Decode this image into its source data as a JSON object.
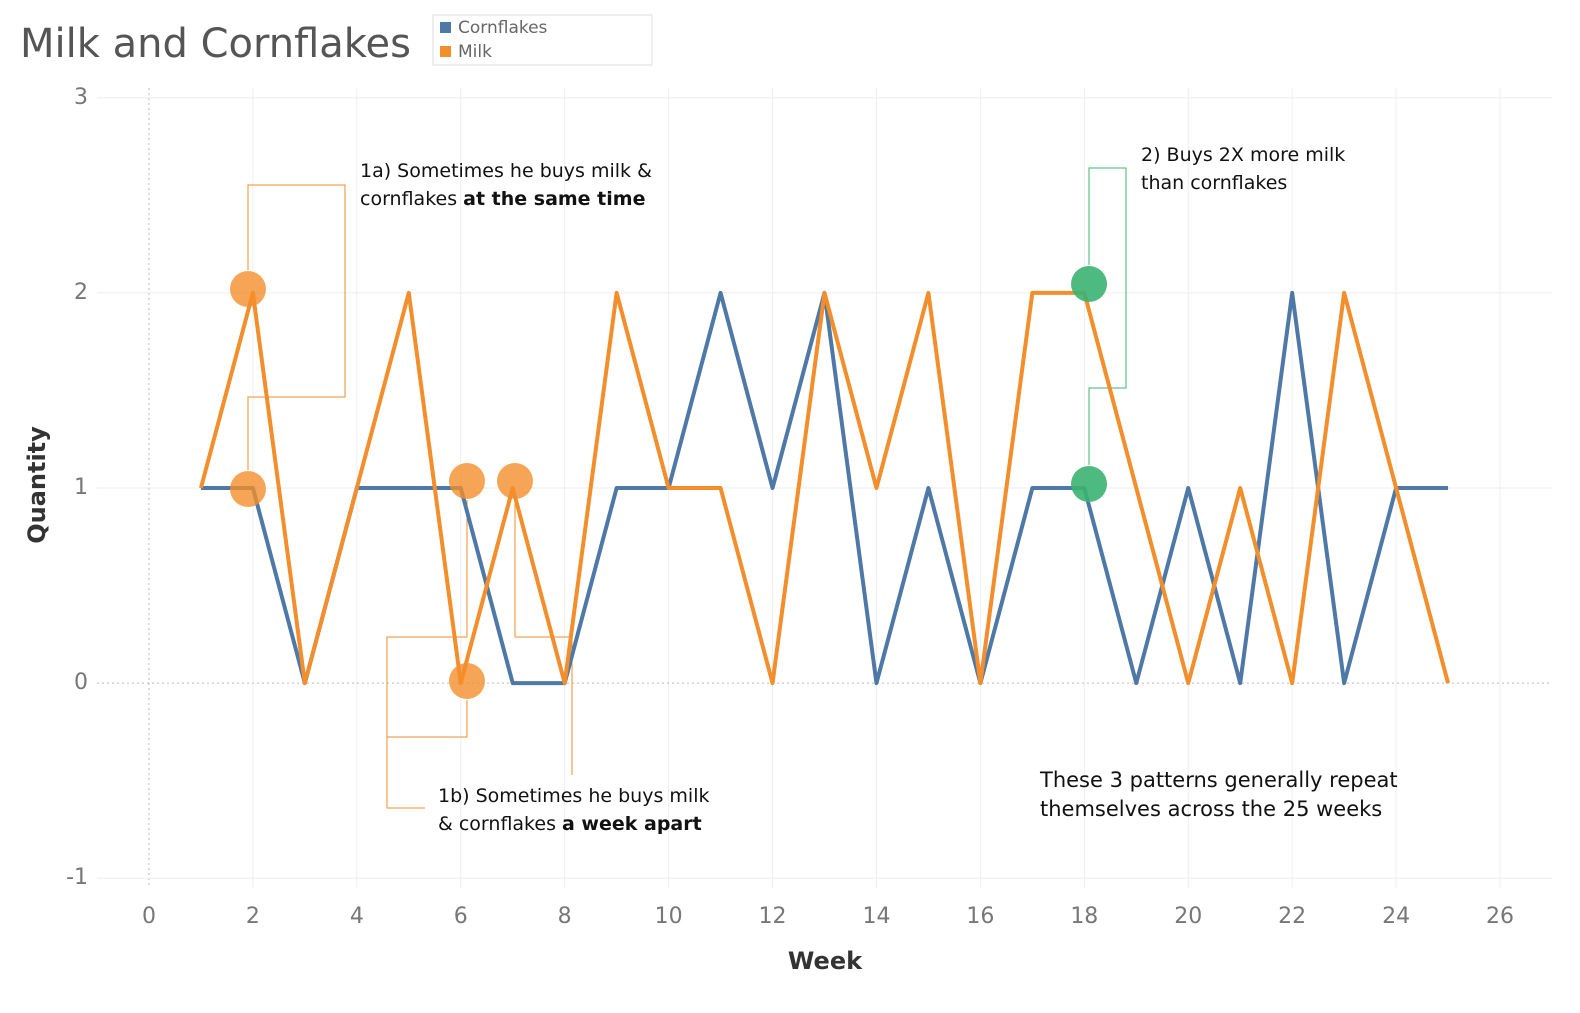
{
  "chart_data": {
    "type": "line",
    "title": "Milk and Cornflakes",
    "x_label": "Week",
    "y_label": "Quantity",
    "x": [
      1,
      2,
      3,
      4,
      5,
      6,
      7,
      8,
      9,
      10,
      11,
      12,
      13,
      14,
      15,
      16,
      17,
      18,
      19,
      20,
      21,
      22,
      23,
      24,
      25
    ],
    "series": [
      {
        "name": "Cornflakes",
        "color": "#4e79a7",
        "values": [
          1,
          1,
          0,
          1,
          1,
          1,
          0,
          0,
          1,
          1,
          2,
          1,
          2,
          0,
          1,
          0,
          1,
          1,
          0,
          1,
          0,
          2,
          0,
          1,
          1
        ]
      },
      {
        "name": "Milk",
        "color": "#f28e2b",
        "values": [
          1,
          2,
          0,
          1,
          2,
          0,
          1,
          0,
          2,
          1,
          1,
          0,
          2,
          1,
          2,
          0,
          2,
          2,
          1,
          0,
          1,
          0,
          2,
          1,
          0
        ]
      }
    ],
    "xlim": [
      -1,
      27
    ],
    "xticks": [
      0,
      2,
      4,
      6,
      8,
      10,
      12,
      14,
      16,
      18,
      20,
      22,
      24,
      26
    ],
    "ylim": [
      -1.05,
      3.05
    ],
    "yticks": [
      -1,
      0,
      1,
      2,
      3
    ],
    "grid": true,
    "legend": "top",
    "annotations": [
      {
        "text": "1a) Sometimes he buys milk & cornflakes",
        "emphasis": "at the same time"
      },
      {
        "text": "1b) Sometimes he buys milk & cornflakes",
        "emphasis": "a week apart"
      },
      {
        "text": "2) Buys 2X more milk than cornflakes"
      },
      {
        "text": "These 3 patterns generally repeat themselves across the 25 weeks"
      }
    ]
  }
}
